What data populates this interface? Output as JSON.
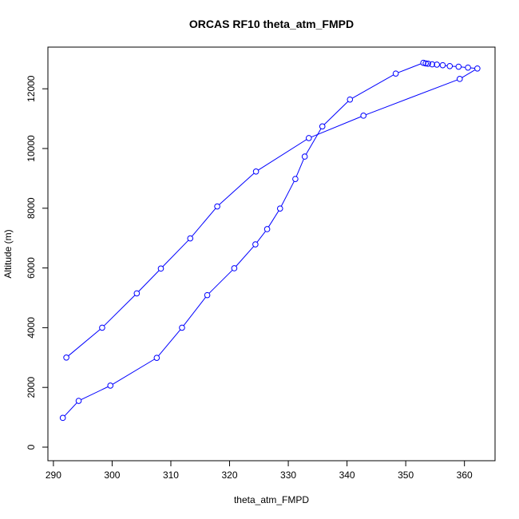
{
  "chart_data": {
    "type": "line",
    "title": "ORCAS RF10 theta_atm_FMPD",
    "xlabel": "theta_atm_FMPD",
    "ylabel": "Altitude (m)",
    "xlim": [
      290,
      365
    ],
    "ylim": [
      0,
      13000
    ],
    "x_ticks": [
      290,
      300,
      310,
      320,
      330,
      340,
      350,
      360
    ],
    "y_ticks": [
      0,
      2000,
      4000,
      6000,
      8000,
      10000,
      12000
    ],
    "grid": false,
    "legend": "none",
    "series": [
      {
        "color": "#0000ff",
        "marker": "open-circle",
        "points": [
          {
            "x": 292.2,
            "y": 3000
          },
          {
            "x": 298.3,
            "y": 4000
          },
          {
            "x": 304.2,
            "y": 5150
          },
          {
            "x": 308.3,
            "y": 5980
          },
          {
            "x": 313.3,
            "y": 6990
          },
          {
            "x": 317.9,
            "y": 8060
          },
          {
            "x": 324.5,
            "y": 9230
          },
          {
            "x": 333.5,
            "y": 10350
          },
          {
            "x": 342.8,
            "y": 11100
          },
          {
            "x": 359.2,
            "y": 12330
          },
          {
            "x": 362.2,
            "y": 12680
          },
          {
            "x": 360.6,
            "y": 12710
          },
          {
            "x": 359.0,
            "y": 12740
          },
          {
            "x": 357.5,
            "y": 12760
          },
          {
            "x": 356.3,
            "y": 12790
          },
          {
            "x": 355.3,
            "y": 12810
          },
          {
            "x": 354.5,
            "y": 12820
          },
          {
            "x": 353.8,
            "y": 12840
          },
          {
            "x": 353.4,
            "y": 12850
          },
          {
            "x": 353.0,
            "y": 12870
          },
          {
            "x": 348.3,
            "y": 12510
          },
          {
            "x": 340.5,
            "y": 11640
          },
          {
            "x": 335.8,
            "y": 10740
          },
          {
            "x": 332.8,
            "y": 9730
          },
          {
            "x": 331.2,
            "y": 8980
          },
          {
            "x": 328.6,
            "y": 7990
          },
          {
            "x": 326.4,
            "y": 7300
          },
          {
            "x": 324.4,
            "y": 6790
          },
          {
            "x": 320.8,
            "y": 5990
          },
          {
            "x": 316.2,
            "y": 5090
          },
          {
            "x": 311.9,
            "y": 4000
          },
          {
            "x": 307.6,
            "y": 2990
          },
          {
            "x": 299.7,
            "y": 2060
          },
          {
            "x": 294.3,
            "y": 1550
          },
          {
            "x": 291.6,
            "y": 980
          }
        ]
      }
    ]
  }
}
